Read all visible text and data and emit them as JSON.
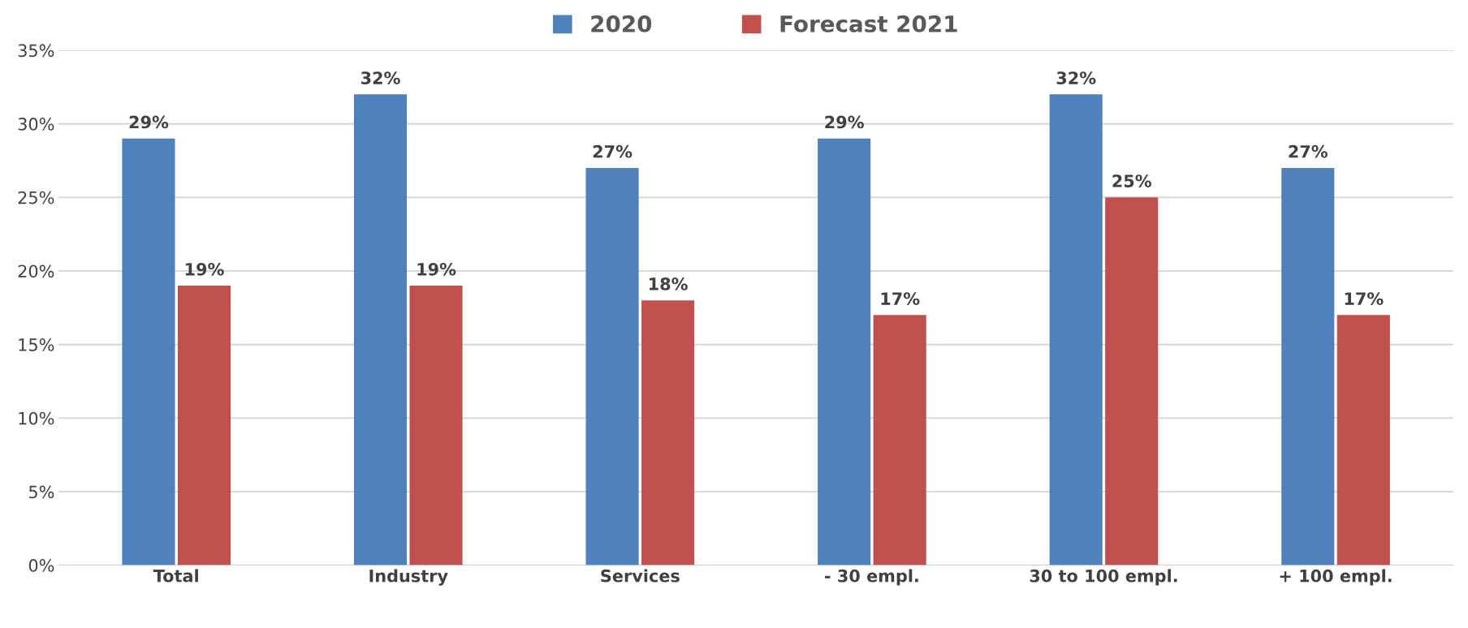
{
  "chart_data": {
    "type": "bar",
    "categories": [
      "Total",
      "Industry",
      "Services",
      "- 30 empl.",
      "30 to 100 empl.",
      "+ 100 empl."
    ],
    "series": [
      {
        "name": "2020",
        "color": "#4f81bd",
        "values": [
          29,
          32,
          27,
          29,
          32,
          27
        ],
        "value_labels": [
          "29%",
          "32%",
          "27%",
          "29%",
          "32%",
          "27%"
        ]
      },
      {
        "name": "Forecast 2021",
        "color": "#c0504d",
        "values": [
          19,
          19,
          18,
          17,
          25,
          17
        ],
        "value_labels": [
          "19%",
          "19%",
          "18%",
          "17%",
          "25%",
          "17%"
        ]
      }
    ],
    "ylim": [
      0,
      35
    ],
    "yticks": [
      {
        "value": 0,
        "label": "0%"
      },
      {
        "value": 5,
        "label": "5%"
      },
      {
        "value": 10,
        "label": "10%"
      },
      {
        "value": 15,
        "label": "15%"
      },
      {
        "value": 20,
        "label": "20%"
      },
      {
        "value": 25,
        "label": "25%"
      },
      {
        "value": 30,
        "label": "30%"
      },
      {
        "value": 35,
        "label": "35%"
      }
    ],
    "grid": "y",
    "legend": "top"
  }
}
